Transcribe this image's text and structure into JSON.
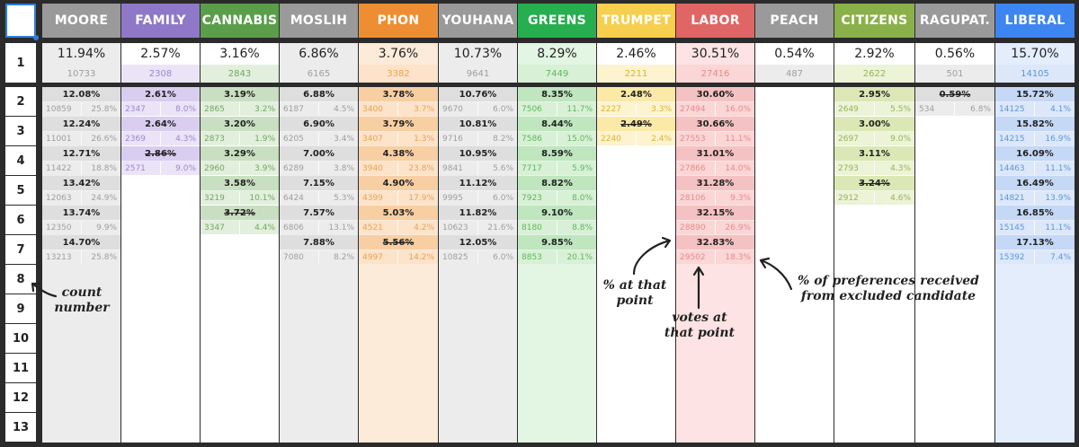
{
  "columns": [
    {
      "key": "moore",
      "name": "MOORE",
      "header_color": "#9a9a9a",
      "bg": "#ececec",
      "cell": "#dedede",
      "sub": "#ececec",
      "txt": "#9e9e9e",
      "first": {
        "pct": "11.94%",
        "votes": "10733"
      },
      "rows": [
        {
          "pct": "12.08%",
          "votes": "10859",
          "share": "25.8%"
        },
        {
          "pct": "12.24%",
          "votes": "11001",
          "share": "26.6%"
        },
        {
          "pct": "12.71%",
          "votes": "11422",
          "share": "18.8%"
        },
        {
          "pct": "13.42%",
          "votes": "12063",
          "share": "24.9%"
        },
        {
          "pct": "13.74%",
          "votes": "12350",
          "share": "9.9%"
        },
        {
          "pct": "14.70%",
          "votes": "13213",
          "share": "25.8%"
        }
      ]
    },
    {
      "key": "family",
      "name": "FAMILY",
      "header_color": "#8f78c8",
      "bg": "#ffffff",
      "cell": "#d9cdf0",
      "sub": "#ebe4f7",
      "txt": "#9b86d1",
      "first": {
        "pct": "2.57%",
        "votes": "2308"
      },
      "rows": [
        {
          "pct": "2.61%",
          "votes": "2347",
          "share": "8.0%"
        },
        {
          "pct": "2.64%",
          "votes": "2369",
          "share": "4.3%"
        },
        {
          "pct": "2.86%",
          "votes": "2571",
          "share": "9.0%",
          "struck": true
        }
      ]
    },
    {
      "key": "cannabis",
      "name": "CANNABIS",
      "header_color": "#5a9e4a",
      "bg": "#ffffff",
      "cell": "#c9dfc1",
      "sub": "#e2efdd",
      "txt": "#6fa85f",
      "first": {
        "pct": "3.16%",
        "votes": "2843"
      },
      "rows": [
        {
          "pct": "3.19%",
          "votes": "2865",
          "share": "3.2%"
        },
        {
          "pct": "3.20%",
          "votes": "2873",
          "share": "1.9%"
        },
        {
          "pct": "3.29%",
          "votes": "2960",
          "share": "3.9%"
        },
        {
          "pct": "3.58%",
          "votes": "3219",
          "share": "10.1%"
        },
        {
          "pct": "3.72%",
          "votes": "3347",
          "share": "4.4%",
          "struck": true
        }
      ]
    },
    {
      "key": "moslih",
      "name": "MOSLIH",
      "header_color": "#9a9a9a",
      "bg": "#ececec",
      "cell": "#dedede",
      "sub": "#ececec",
      "txt": "#9e9e9e",
      "first": {
        "pct": "6.86%",
        "votes": "6165"
      },
      "rows": [
        {
          "pct": "6.88%",
          "votes": "6187",
          "share": "4.5%"
        },
        {
          "pct": "6.90%",
          "votes": "6205",
          "share": "3.4%"
        },
        {
          "pct": "7.00%",
          "votes": "6289",
          "share": "3.8%"
        },
        {
          "pct": "7.15%",
          "votes": "6424",
          "share": "5.3%"
        },
        {
          "pct": "7.57%",
          "votes": "6806",
          "share": "13.1%"
        },
        {
          "pct": "7.88%",
          "votes": "7080",
          "share": "8.2%"
        }
      ]
    },
    {
      "key": "phon",
      "name": "PHON",
      "header_color": "#ee8e33",
      "bg": "#fdebd9",
      "cell": "#f8cfa3",
      "sub": "#fce3ca",
      "txt": "#f0a04f",
      "first": {
        "pct": "3.76%",
        "votes": "3382"
      },
      "rows": [
        {
          "pct": "3.78%",
          "votes": "3400",
          "share": "3.7%"
        },
        {
          "pct": "3.79%",
          "votes": "3407",
          "share": "1.3%"
        },
        {
          "pct": "4.38%",
          "votes": "3940",
          "share": "23.8%"
        },
        {
          "pct": "4.90%",
          "votes": "4399",
          "share": "17.9%"
        },
        {
          "pct": "5.03%",
          "votes": "4521",
          "share": "4.2%"
        },
        {
          "pct": "5.56%",
          "votes": "4997",
          "share": "14.2%",
          "struck": true
        }
      ]
    },
    {
      "key": "youhana",
      "name": "YOUHANA",
      "header_color": "#9a9a9a",
      "bg": "#ececec",
      "cell": "#dedede",
      "sub": "#ececec",
      "txt": "#9e9e9e",
      "first": {
        "pct": "10.73%",
        "votes": "9641"
      },
      "rows": [
        {
          "pct": "10.76%",
          "votes": "9670",
          "share": "6.0%"
        },
        {
          "pct": "10.81%",
          "votes": "9716",
          "share": "8.2%"
        },
        {
          "pct": "10.95%",
          "votes": "9841",
          "share": "5.6%"
        },
        {
          "pct": "11.12%",
          "votes": "9995",
          "share": "6.0%"
        },
        {
          "pct": "11.82%",
          "votes": "10623",
          "share": "21.6%"
        },
        {
          "pct": "12.05%",
          "votes": "10825",
          "share": "6.0%"
        }
      ]
    },
    {
      "key": "greens",
      "name": "GREENS",
      "header_color": "#27ae4f",
      "bg": "#e3f5e3",
      "cell": "#bfe6bf",
      "sub": "#d8f0d6",
      "txt": "#5cb85c",
      "first": {
        "pct": "8.29%",
        "votes": "7449"
      },
      "rows": [
        {
          "pct": "8.35%",
          "votes": "7506",
          "share": "11.7%"
        },
        {
          "pct": "8.44%",
          "votes": "7586",
          "share": "15.0%"
        },
        {
          "pct": "8.59%",
          "votes": "7717",
          "share": "5.9%"
        },
        {
          "pct": "8.82%",
          "votes": "7923",
          "share": "8.0%"
        },
        {
          "pct": "9.10%",
          "votes": "8180",
          "share": "8.8%"
        },
        {
          "pct": "9.85%",
          "votes": "8853",
          "share": "20.1%"
        }
      ]
    },
    {
      "key": "trumpet",
      "name": "TRUMPET",
      "header_color": "#f6cf4e",
      "bg": "#ffffff",
      "cell": "#fbe9a8",
      "sub": "#fdf3cf",
      "txt": "#d8b530",
      "first": {
        "pct": "2.46%",
        "votes": "2211"
      },
      "rows": [
        {
          "pct": "2.48%",
          "votes": "2227",
          "share": "3.3%"
        },
        {
          "pct": "2.49%",
          "votes": "2240",
          "share": "2.4%",
          "struck": true
        }
      ]
    },
    {
      "key": "labor",
      "name": "LABOR",
      "header_color": "#e06666",
      "bg": "#fde3e3",
      "cell": "#f4c2c2",
      "sub": "#fad6d6",
      "txt": "#e88a8a",
      "first": {
        "pct": "30.51%",
        "votes": "27416"
      },
      "rows": [
        {
          "pct": "30.60%",
          "votes": "27494",
          "share": "16.0%"
        },
        {
          "pct": "30.66%",
          "votes": "27553",
          "share": "11.1%"
        },
        {
          "pct": "31.01%",
          "votes": "27866",
          "share": "14.0%"
        },
        {
          "pct": "31.28%",
          "votes": "28106",
          "share": "9.3%"
        },
        {
          "pct": "32.15%",
          "votes": "28890",
          "share": "26.9%"
        },
        {
          "pct": "32.83%",
          "votes": "29502",
          "share": "18.3%"
        }
      ]
    },
    {
      "key": "peach",
      "name": "PEACH",
      "header_color": "#9a9a9a",
      "bg": "#ffffff",
      "cell": "#dedede",
      "sub": "#ececec",
      "txt": "#9e9e9e",
      "first": {
        "pct": "0.54%",
        "votes": "487"
      },
      "rows": []
    },
    {
      "key": "citizens",
      "name": "CITIZENS",
      "header_color": "#8ab04a",
      "bg": "#ffffff",
      "cell": "#dbe8b5",
      "sub": "#ecf3d6",
      "txt": "#93b55a",
      "first": {
        "pct": "2.92%",
        "votes": "2622"
      },
      "rows": [
        {
          "pct": "2.95%",
          "votes": "2649",
          "share": "5.5%"
        },
        {
          "pct": "3.00%",
          "votes": "2697",
          "share": "9.0%"
        },
        {
          "pct": "3.11%",
          "votes": "2793",
          "share": "4.3%"
        },
        {
          "pct": "3.24%",
          "votes": "2912",
          "share": "4.6%",
          "struck": true
        }
      ]
    },
    {
      "key": "ragupat",
      "name": "RAGUPAT.",
      "header_color": "#9a9a9a",
      "bg": "#ffffff",
      "cell": "#dedede",
      "sub": "#ececec",
      "txt": "#9e9e9e",
      "first": {
        "pct": "0.56%",
        "votes": "501"
      },
      "rows": [
        {
          "pct": "0.59%",
          "votes": "534",
          "share": "6.8%",
          "struck": true
        }
      ]
    },
    {
      "key": "liberal",
      "name": "LIBERAL",
      "header_color": "#3d85f0",
      "bg": "#e3edfc",
      "cell": "#c5d8f5",
      "sub": "#dce8fa",
      "txt": "#5b94e0",
      "first": {
        "pct": "15.70%",
        "votes": "14105"
      },
      "rows": [
        {
          "pct": "15.72%",
          "votes": "14125",
          "share": "4.1%"
        },
        {
          "pct": "15.82%",
          "votes": "14215",
          "share": "16.9%"
        },
        {
          "pct": "16.09%",
          "votes": "14463",
          "share": "11.1%"
        },
        {
          "pct": "16.49%",
          "votes": "14821",
          "share": "13.9%"
        },
        {
          "pct": "16.85%",
          "votes": "15145",
          "share": "11.1%"
        },
        {
          "pct": "17.13%",
          "votes": "15392",
          "share": "7.4%"
        }
      ]
    }
  ],
  "row_numbers": [
    "1",
    "2",
    "3",
    "4",
    "5",
    "6",
    "7",
    "8",
    "9",
    "10",
    "11",
    "12",
    "13"
  ],
  "annotations": {
    "count_number": [
      "count",
      "number"
    ],
    "pct_at_point": [
      "% at that",
      "point"
    ],
    "votes_at_point": [
      "votes at",
      "that point"
    ],
    "pct_prefs": [
      "% of preferences received",
      "from excluded candidate"
    ]
  }
}
